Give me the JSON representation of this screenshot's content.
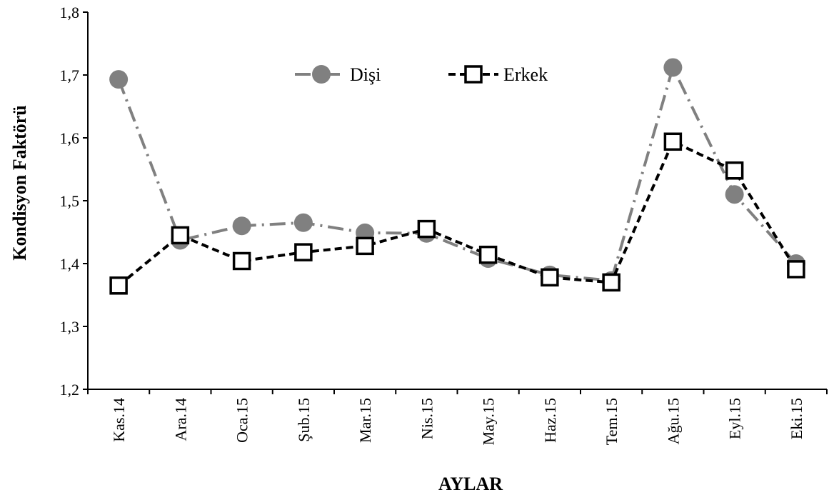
{
  "chart_data": {
    "type": "line",
    "categories": [
      "Kas.14",
      "Ara.14",
      "Oca.15",
      "Şub.15",
      "Mar.15",
      "Nis.15",
      "May.15",
      "Haz.15",
      "Tem.15",
      "Ağu.15",
      "Eyl.15",
      "Eki.15"
    ],
    "xlabel": "AYLAR",
    "ylabel": "Kondisyon Faktörü",
    "ylim": [
      1.2,
      1.8
    ],
    "yticks": [
      "1,2",
      "1,3",
      "1,4",
      "1,5",
      "1,6",
      "1,7",
      "1,8"
    ],
    "grid": false,
    "legend_position": "top-center",
    "series": [
      {
        "name": "Dişi",
        "values": [
          1.693,
          1.437,
          1.46,
          1.465,
          1.449,
          1.448,
          1.408,
          1.382,
          1.373,
          1.712,
          1.51,
          1.4
        ],
        "color": "#808080",
        "marker": "circle",
        "line_style": "dash-dot"
      },
      {
        "name": "Erkek",
        "values": [
          1.365,
          1.445,
          1.404,
          1.418,
          1.428,
          1.455,
          1.414,
          1.378,
          1.37,
          1.594,
          1.548,
          1.391
        ],
        "color": "#000000",
        "marker": "square",
        "line_style": "dashed"
      }
    ]
  }
}
